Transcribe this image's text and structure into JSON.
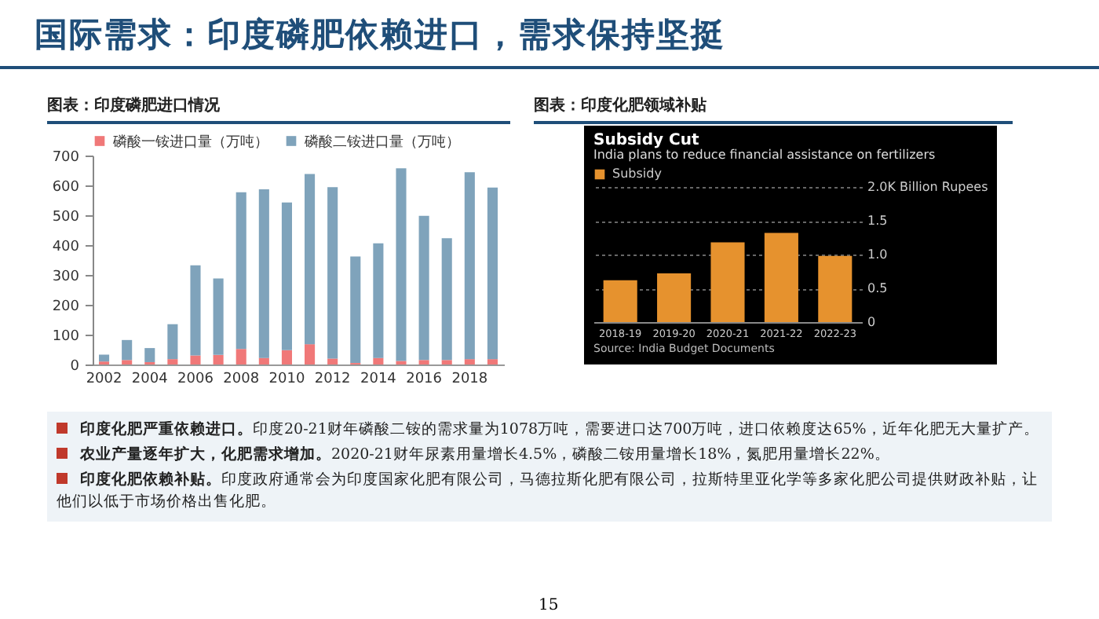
{
  "chart_data": [
    {
      "type": "bar",
      "title": "图表：印度磷肥进口情况",
      "stacked": true,
      "legend": "top",
      "grid": false,
      "categories": [
        "2002",
        null,
        "2004",
        null,
        "2006",
        null,
        "2008",
        null,
        "2010",
        null,
        "2012",
        null,
        "2014",
        null,
        "2016",
        null,
        "2018",
        null
      ],
      "ylim": [
        0,
        700
      ],
      "yticks": [
        0,
        100,
        200,
        300,
        400,
        500,
        600,
        700
      ],
      "series": [
        {
          "name": "磷酸一铵进口量（万吨）",
          "color": "#f07878",
          "values": [
            10,
            15,
            8,
            18,
            30,
            32,
            52,
            22,
            48,
            68,
            20,
            5,
            22,
            12,
            15,
            15,
            18,
            18
          ]
        },
        {
          "name": "磷酸二铵进口量（万吨）",
          "color": "#7fa3bb",
          "values": [
            23,
            67,
            47,
            117,
            302,
            256,
            525,
            565,
            495,
            570,
            574,
            357,
            384,
            645,
            483,
            408,
            626,
            575
          ]
        }
      ]
    },
    {
      "type": "bar",
      "title": "图表：印度化肥领域补贴",
      "subtitle": "Subsidy Cut",
      "legend": "top left",
      "grid": "y",
      "annotations": [
        "India plans to reduce financial assistance on fertilizers",
        "Source: India Budget Documents"
      ],
      "categories": [
        "2018-19",
        "2019-20",
        "2020-21",
        "2021-22",
        "2022-23"
      ],
      "ylim": [
        0,
        2
      ],
      "yticks": [
        0,
        0.5,
        {
          "value": 1,
          "label": "1.0"
        },
        1.5,
        {
          "value": 2,
          "label": "2.0K Billion Rupees"
        }
      ],
      "series": [
        {
          "name": "Subsidy",
          "color": "#e6922e",
          "values": [
            0.62,
            0.72,
            1.18,
            1.32,
            0.98
          ]
        }
      ]
    },
    {
      "type": "other",
      "title": "国际需求：印度磷肥依赖进口，需求保持坚挺",
      "annotations": [
        "印度化肥严重依赖进口。印度20-21财年磷酸二铵的需求量为1078万吨，需要进口达700万吨，进口依赖度达65%，近年化肥无大量扩产。",
        "农业产量逐年扩大，化肥需求增加。2020-21财年尿素用量增长4.5%，磷酸二铵用量增长18%，氮肥用量增长22%。",
        "印度化肥依赖补贴。印度政府通常会为印度国家化肥有限公司，马德拉斯化肥有限公司，拉斯特里亚化学等多家化肥公司提供财政补贴，让他们以低于市场价格出售化肥。",
        "15"
      ]
    }
  ]
}
